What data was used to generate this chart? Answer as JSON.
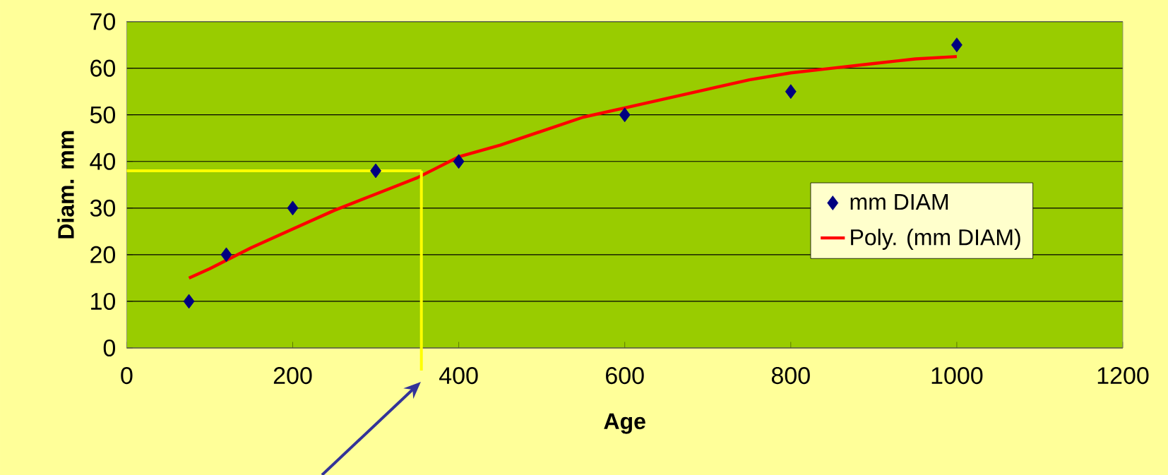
{
  "chart_data": {
    "type": "scatter",
    "xlabel": "Age",
    "ylabel": "Diam. mm",
    "xlim": [
      0,
      1200
    ],
    "ylim": [
      0,
      70
    ],
    "xticks": [
      0,
      200,
      400,
      600,
      800,
      1000,
      1200
    ],
    "yticks": [
      0,
      10,
      20,
      30,
      40,
      50,
      60,
      70
    ],
    "grid": "y",
    "legend": "right",
    "x": [
      75,
      120,
      200,
      300,
      400,
      600,
      800,
      1000
    ],
    "series": [
      {
        "name": "mm DIAM",
        "marker": "diamond",
        "color": "#000080",
        "values": [
          10,
          20,
          30,
          38,
          40,
          50,
          55,
          65
        ]
      },
      {
        "name": "Poly. (mm DIAM)",
        "type": "line",
        "marker": "none",
        "color": "#ff0000",
        "x": [
          75,
          100,
          150,
          200,
          250,
          300,
          350,
          400,
          450,
          500,
          550,
          600,
          650,
          700,
          750,
          800,
          850,
          900,
          950,
          1000
        ],
        "values": [
          15,
          17,
          21.5,
          25.5,
          29.5,
          33,
          36.5,
          41,
          43.5,
          46.5,
          49.5,
          51.5,
          53.5,
          55.5,
          57.5,
          59,
          60,
          61,
          62,
          62.5
        ]
      }
    ],
    "ref_lines": [
      {
        "axis": "y",
        "value": 38,
        "color": "#ffff00"
      },
      {
        "axis": "x",
        "value": 355,
        "color": "#ffff00"
      }
    ]
  }
}
